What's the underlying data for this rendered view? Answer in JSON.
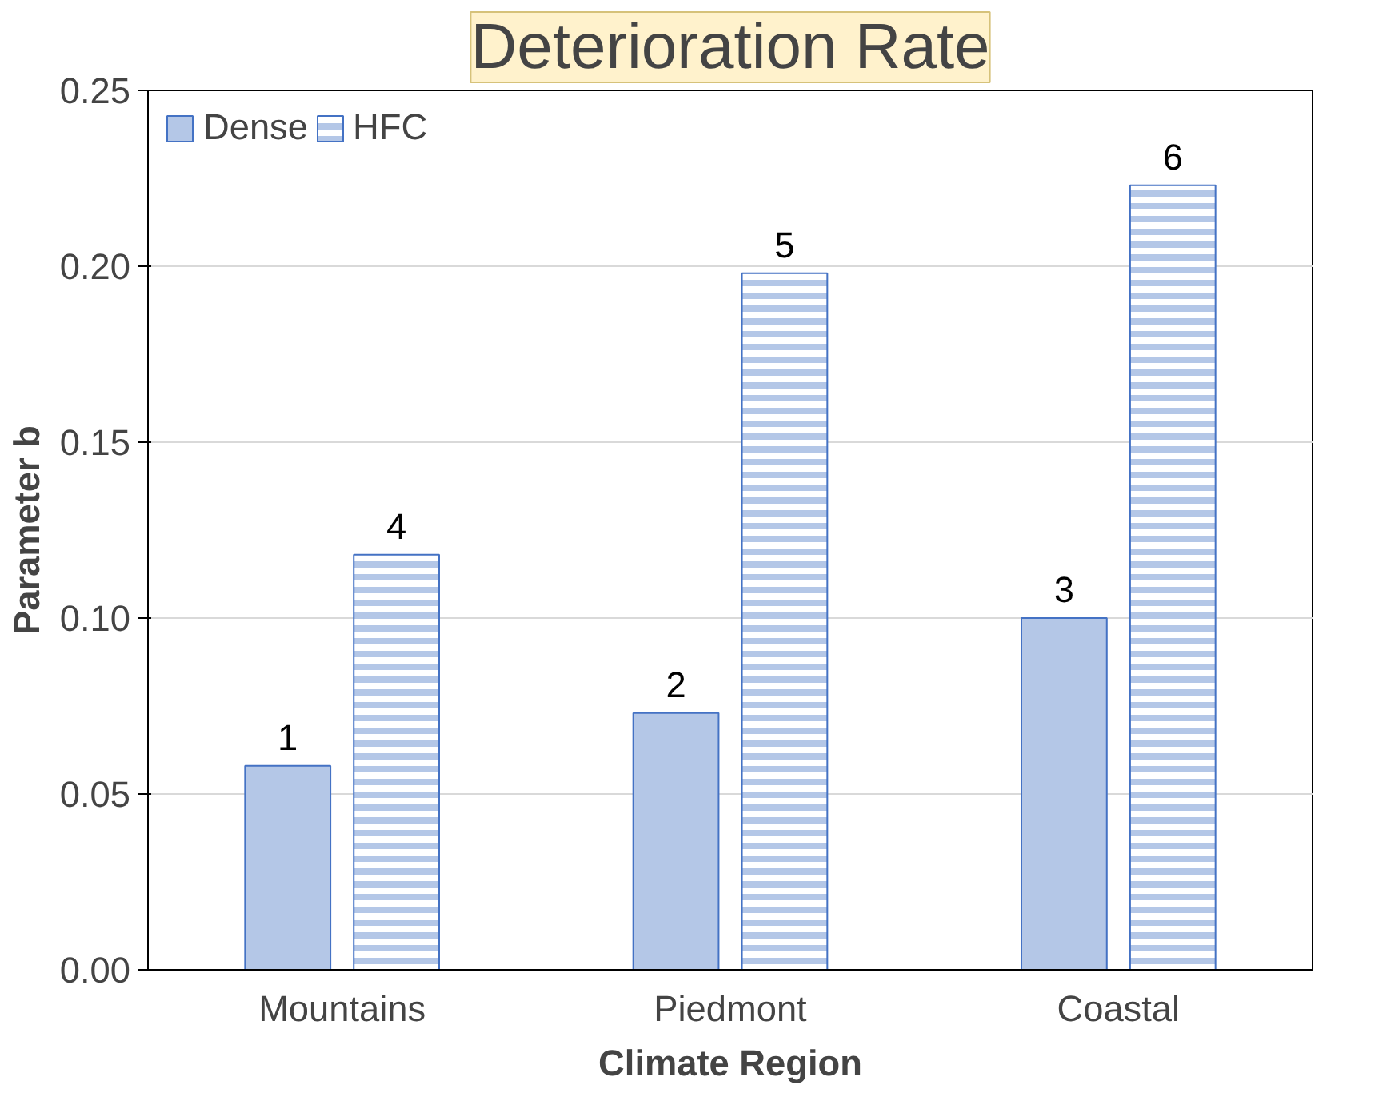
{
  "chart_data": {
    "type": "bar",
    "title": "Deterioration Rate",
    "xlabel": "Climate Region",
    "ylabel": "Parameter b",
    "categories": [
      "Mountains",
      "Piedmont",
      "Coastal"
    ],
    "series": [
      {
        "name": "Dense",
        "color": "#b4c7e7",
        "values": [
          0.058,
          0.073,
          0.1
        ]
      },
      {
        "name": "HFC",
        "color": "#b4c7e7",
        "values": [
          0.118,
          0.198,
          0.223
        ]
      }
    ],
    "annotations": [
      "1",
      "2",
      "3",
      "4",
      "5",
      "6"
    ],
    "ylim": [
      0,
      0.25
    ],
    "yticks": [
      {
        "value": 0,
        "label": "0.00"
      },
      {
        "value": 0.05,
        "label": "0.05"
      },
      {
        "value": 0.1,
        "label": "0.10"
      },
      {
        "value": 0.15,
        "label": "0.15"
      },
      {
        "value": 0.2,
        "label": "0.20"
      },
      {
        "value": 0.25,
        "label": "0.25"
      }
    ],
    "grid": "y",
    "legend": "top left"
  }
}
